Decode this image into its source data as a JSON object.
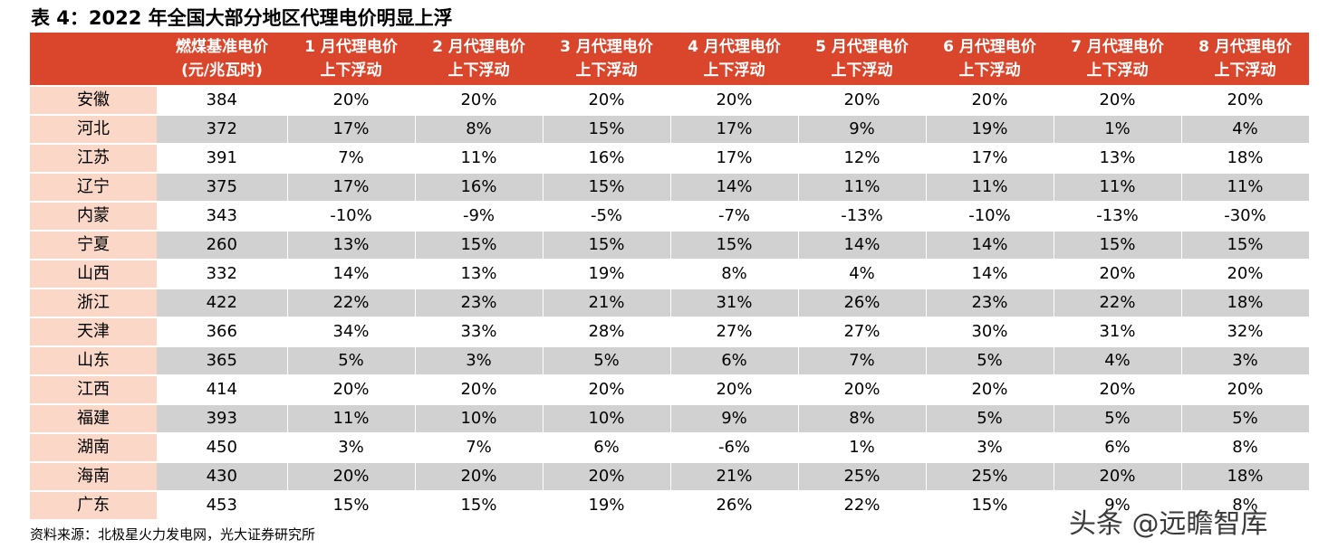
{
  "title": "表 4：2022 年全国大部分地区代理电价明显上浮",
  "header": {
    "province": "",
    "columns": [
      {
        "line1": "燃煤基准电价",
        "line2": "(元/兆瓦时)"
      },
      {
        "line1": "1 月代理电价",
        "line2": "上下浮动"
      },
      {
        "line1": "2 月代理电价",
        "line2": "上下浮动"
      },
      {
        "line1": "3 月代理电价",
        "line2": "上下浮动"
      },
      {
        "line1": "4 月代理电价",
        "line2": "上下浮动"
      },
      {
        "line1": "5 月代理电价",
        "line2": "上下浮动"
      },
      {
        "line1": "6 月代理电价",
        "line2": "上下浮动"
      },
      {
        "line1": "7 月代理电价",
        "line2": "上下浮动"
      },
      {
        "line1": "8 月代理电价",
        "line2": "上下浮动"
      }
    ]
  },
  "rows": [
    {
      "province": "安徽",
      "values": [
        "384",
        "20%",
        "20%",
        "20%",
        "20%",
        "20%",
        "20%",
        "20%",
        "20%"
      ]
    },
    {
      "province": "河北",
      "values": [
        "372",
        "17%",
        "8%",
        "15%",
        "17%",
        "9%",
        "19%",
        "1%",
        "4%"
      ]
    },
    {
      "province": "江苏",
      "values": [
        "391",
        "7%",
        "11%",
        "16%",
        "17%",
        "12%",
        "17%",
        "13%",
        "18%"
      ]
    },
    {
      "province": "辽宁",
      "values": [
        "375",
        "17%",
        "16%",
        "15%",
        "14%",
        "11%",
        "11%",
        "11%",
        "11%"
      ]
    },
    {
      "province": "内蒙",
      "values": [
        "343",
        "-10%",
        "-9%",
        "-5%",
        "-7%",
        "-13%",
        "-10%",
        "-13%",
        "-30%"
      ]
    },
    {
      "province": "宁夏",
      "values": [
        "260",
        "13%",
        "15%",
        "15%",
        "15%",
        "14%",
        "14%",
        "15%",
        "15%"
      ]
    },
    {
      "province": "山西",
      "values": [
        "332",
        "14%",
        "13%",
        "19%",
        "8%",
        "4%",
        "14%",
        "20%",
        "20%"
      ]
    },
    {
      "province": "浙江",
      "values": [
        "422",
        "22%",
        "23%",
        "21%",
        "31%",
        "26%",
        "23%",
        "22%",
        "18%"
      ]
    },
    {
      "province": "天津",
      "values": [
        "366",
        "34%",
        "33%",
        "28%",
        "27%",
        "27%",
        "30%",
        "31%",
        "32%"
      ]
    },
    {
      "province": "山东",
      "values": [
        "365",
        "5%",
        "3%",
        "5%",
        "6%",
        "7%",
        "5%",
        "4%",
        "3%"
      ]
    },
    {
      "province": "江西",
      "values": [
        "414",
        "20%",
        "20%",
        "20%",
        "20%",
        "20%",
        "20%",
        "20%",
        "20%"
      ]
    },
    {
      "province": "福建",
      "values": [
        "393",
        "11%",
        "10%",
        "10%",
        "9%",
        "8%",
        "5%",
        "5%",
        "5%"
      ]
    },
    {
      "province": "湖南",
      "values": [
        "450",
        "3%",
        "7%",
        "6%",
        "-6%",
        "1%",
        "3%",
        "6%",
        "8%"
      ]
    },
    {
      "province": "海南",
      "values": [
        "430",
        "20%",
        "20%",
        "20%",
        "21%",
        "25%",
        "25%",
        "20%",
        "18%"
      ]
    },
    {
      "province": "广东",
      "values": [
        "453",
        "15%",
        "15%",
        "19%",
        "26%",
        "22%",
        "15%",
        "9%",
        "8%"
      ]
    }
  ],
  "source": "资料来源：北极星火力发电网，光大证券研究所",
  "watermark": "头条 @远瞻智库",
  "colors": {
    "header_bg": "#d9462c",
    "province_bg": "#fad7c7",
    "stripe_bg": "#d1d1d1"
  }
}
